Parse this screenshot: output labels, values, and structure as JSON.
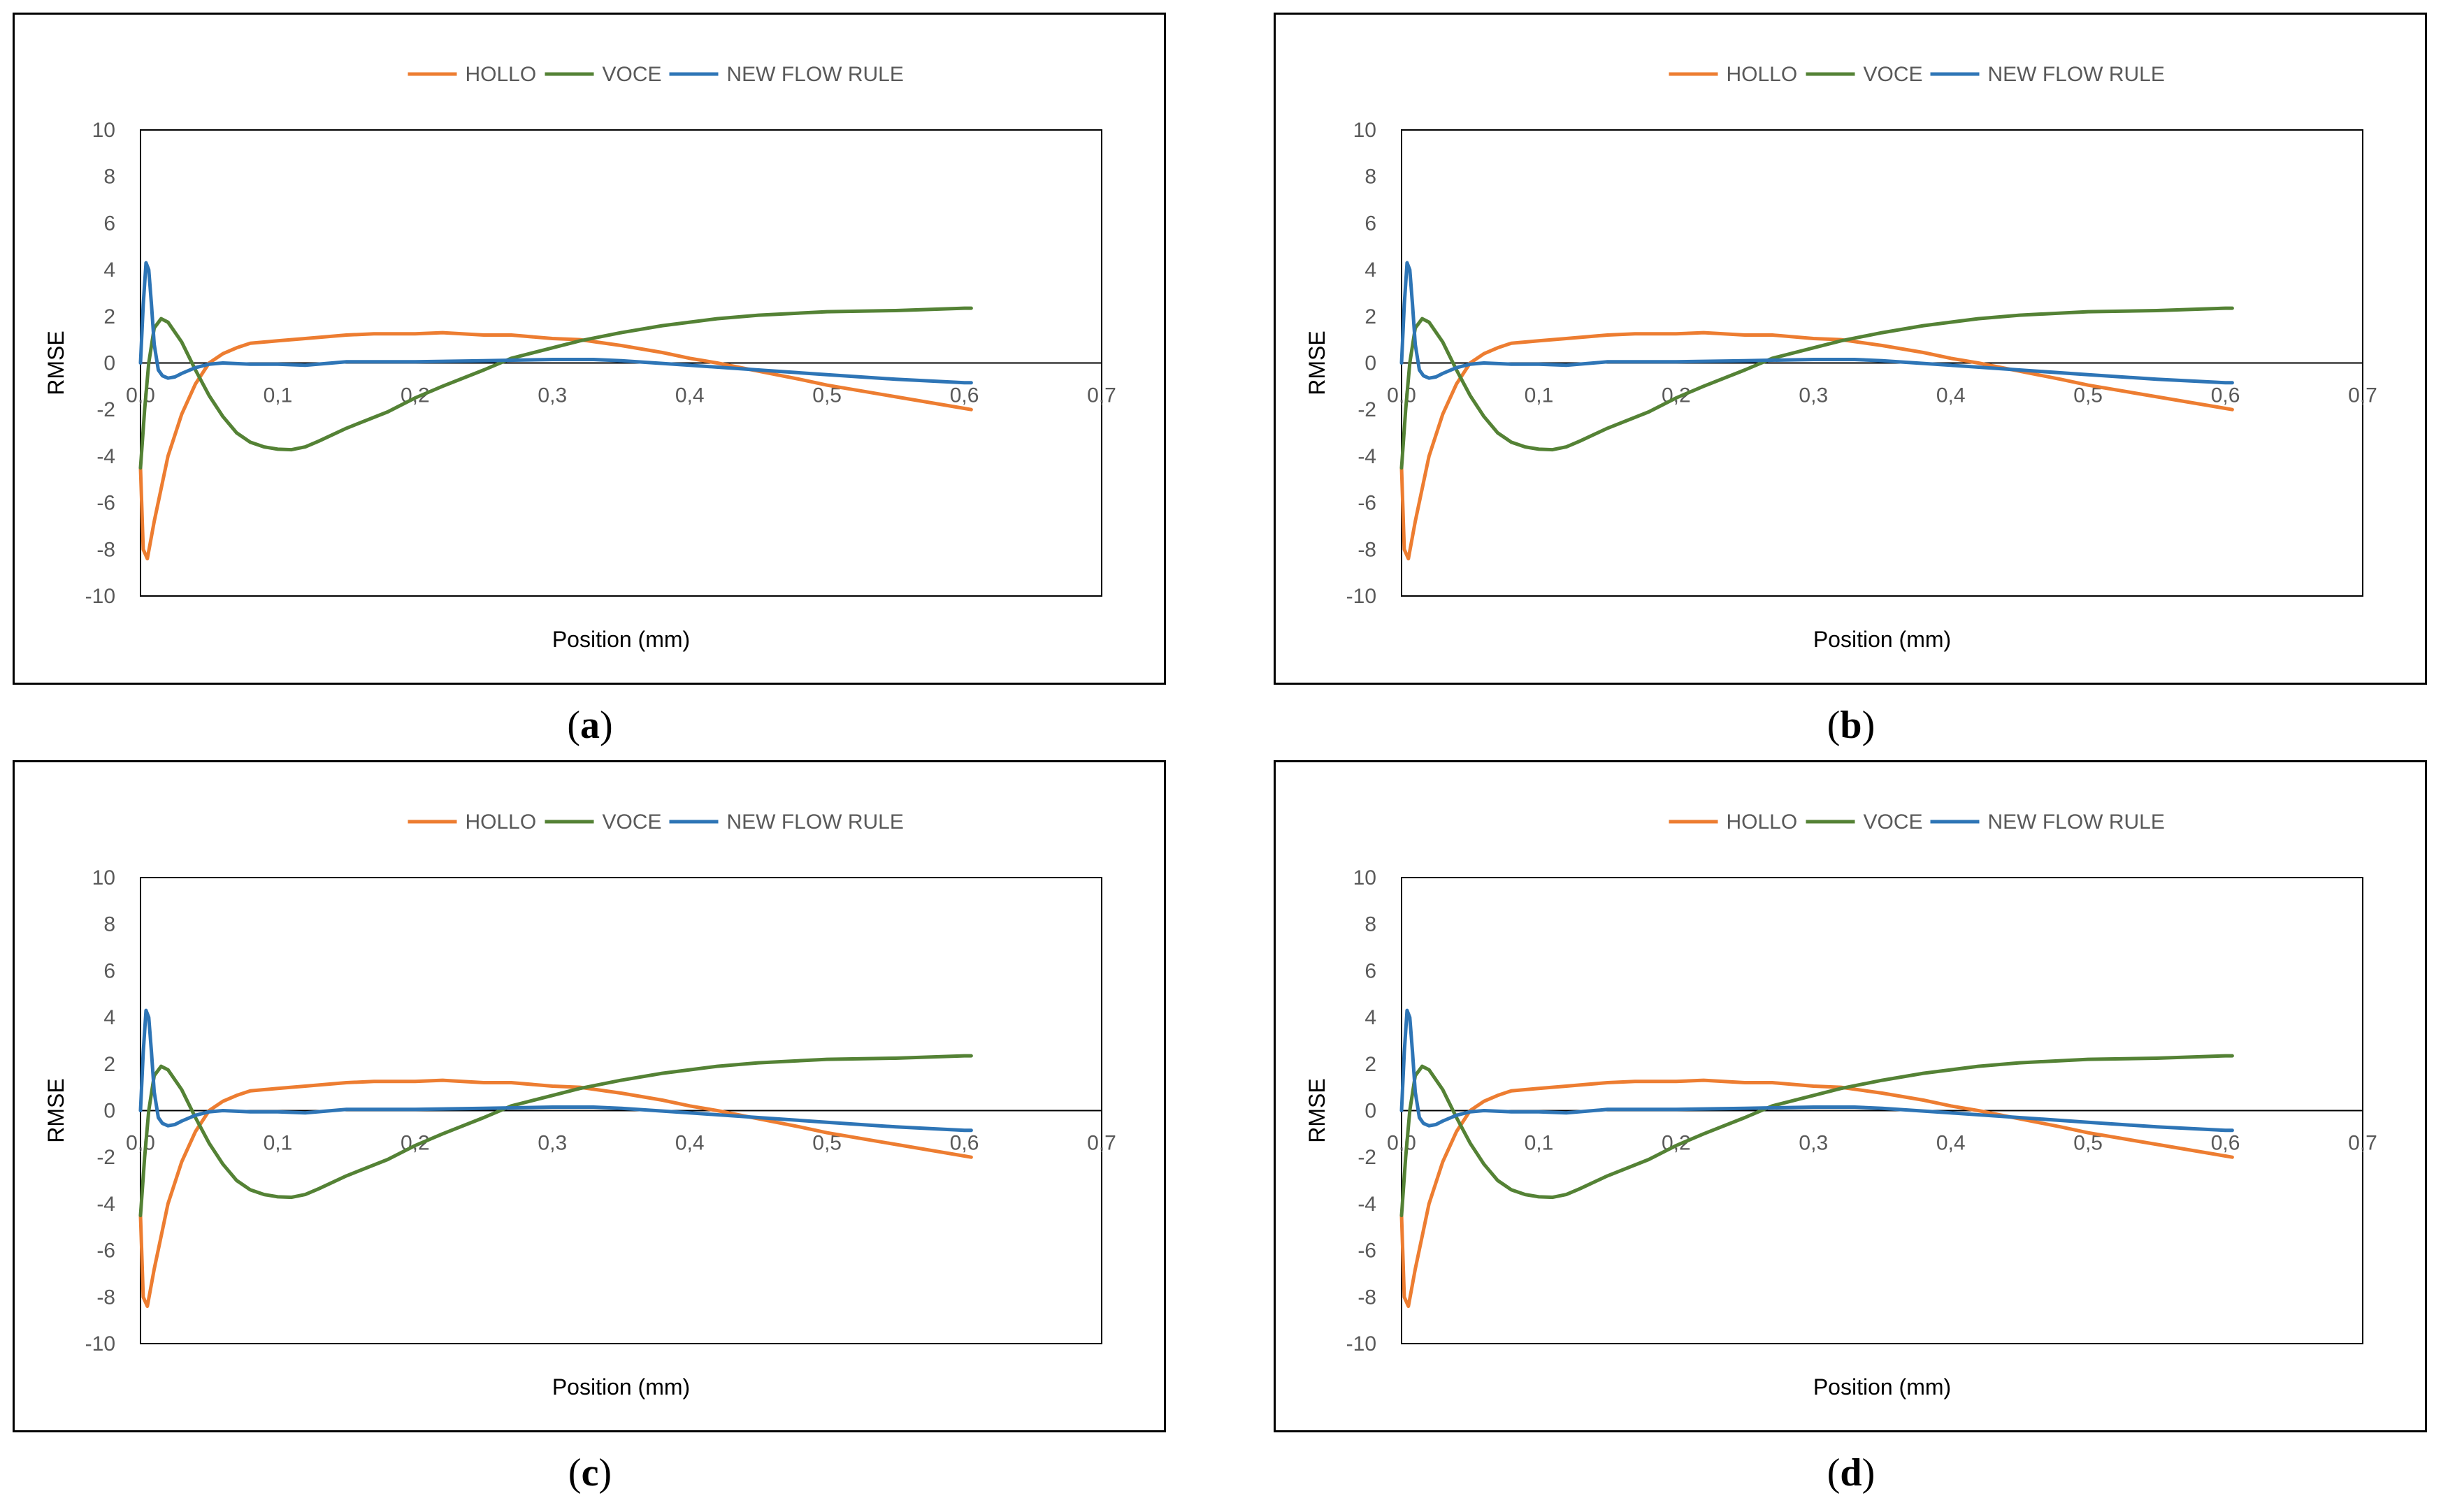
{
  "colors": {
    "hollo": "#ED7D31",
    "voce": "#548235",
    "new_flow_rule": "#2E75B6",
    "axis": "#000000",
    "tick_text": "#595959"
  },
  "chart_data": [
    {
      "type": "line",
      "caption": "a",
      "title": "",
      "xlabel": "Position (mm)",
      "ylabel": "RMSE",
      "xlim": [
        0,
        0.7
      ],
      "ylim": [
        -10,
        10
      ],
      "x_ticks": [
        "0,0",
        "0,1",
        "0,2",
        "0,3",
        "0,4",
        "0,5",
        "0,6",
        "0,7"
      ],
      "y_ticks": [
        "10",
        "8",
        "6",
        "4",
        "2",
        "0",
        "-2",
        "-4",
        "-6",
        "-8",
        "-10"
      ],
      "grid": false,
      "legend": "top-center",
      "series": [
        {
          "name": "HOLLO",
          "color_key": "hollo",
          "x": [
            0,
            0.002,
            0.005,
            0.01,
            0.02,
            0.03,
            0.04,
            0.05,
            0.06,
            0.07,
            0.08,
            0.1,
            0.12,
            0.15,
            0.17,
            0.2,
            0.22,
            0.25,
            0.27,
            0.3,
            0.32,
            0.35,
            0.38,
            0.4,
            0.42,
            0.45,
            0.48,
            0.5,
            0.55,
            0.6,
            0.605
          ],
          "y": [
            -4.5,
            -8.0,
            -8.4,
            -6.8,
            -4.0,
            -2.2,
            -0.9,
            0.0,
            0.4,
            0.65,
            0.85,
            0.95,
            1.05,
            1.2,
            1.25,
            1.25,
            1.3,
            1.2,
            1.2,
            1.05,
            1.0,
            0.75,
            0.45,
            0.2,
            0.0,
            -0.35,
            -0.7,
            -0.95,
            -1.45,
            -1.95,
            -2.0
          ]
        },
        {
          "name": "VOCE",
          "color_key": "voce",
          "x": [
            0,
            0.003,
            0.006,
            0.01,
            0.015,
            0.02,
            0.03,
            0.04,
            0.05,
            0.06,
            0.07,
            0.08,
            0.09,
            0.1,
            0.11,
            0.12,
            0.13,
            0.15,
            0.18,
            0.2,
            0.22,
            0.25,
            0.27,
            0.3,
            0.32,
            0.35,
            0.38,
            0.4,
            0.42,
            0.45,
            0.5,
            0.55,
            0.6,
            0.605
          ],
          "y": [
            -4.5,
            -2.0,
            0.0,
            1.5,
            1.9,
            1.75,
            0.9,
            -0.3,
            -1.4,
            -2.3,
            -3.0,
            -3.4,
            -3.6,
            -3.7,
            -3.72,
            -3.6,
            -3.35,
            -2.8,
            -2.1,
            -1.5,
            -1.0,
            -0.3,
            0.2,
            0.65,
            0.95,
            1.3,
            1.6,
            1.75,
            1.9,
            2.05,
            2.2,
            2.25,
            2.35,
            2.35
          ]
        },
        {
          "name": "NEW FLOW RULE",
          "color_key": "new_flow_rule",
          "x": [
            0,
            0.002,
            0.004,
            0.006,
            0.008,
            0.01,
            0.013,
            0.016,
            0.02,
            0.025,
            0.03,
            0.04,
            0.05,
            0.06,
            0.08,
            0.1,
            0.12,
            0.15,
            0.2,
            0.25,
            0.3,
            0.33,
            0.35,
            0.4,
            0.45,
            0.5,
            0.55,
            0.6,
            0.605
          ],
          "y": [
            0.0,
            2.5,
            4.3,
            4.0,
            2.5,
            0.8,
            -0.3,
            -0.55,
            -0.65,
            -0.6,
            -0.45,
            -0.2,
            -0.05,
            0.0,
            -0.05,
            -0.05,
            -0.1,
            0.05,
            0.05,
            0.1,
            0.15,
            0.15,
            0.1,
            -0.1,
            -0.3,
            -0.5,
            -0.7,
            -0.85,
            -0.85
          ]
        }
      ]
    },
    {
      "type": "line",
      "caption": "b",
      "title": "",
      "xlabel": "Position (mm)",
      "ylabel": "RMSE",
      "xlim": [
        0,
        0.7
      ],
      "ylim": [
        -10,
        10
      ],
      "x_ticks": [
        "0,0",
        "0,1",
        "0,2",
        "0,3",
        "0,4",
        "0,5",
        "0,6",
        "0,7"
      ],
      "y_ticks": [
        "10",
        "8",
        "6",
        "4",
        "2",
        "0",
        "-2",
        "-4",
        "-6",
        "-8",
        "-10"
      ],
      "grid": false,
      "legend": "top-center",
      "series": [
        {
          "name": "HOLLO",
          "color_key": "hollo",
          "x": [
            0,
            0.002,
            0.005,
            0.01,
            0.02,
            0.03,
            0.04,
            0.05,
            0.06,
            0.07,
            0.08,
            0.1,
            0.12,
            0.15,
            0.17,
            0.2,
            0.22,
            0.25,
            0.27,
            0.3,
            0.32,
            0.35,
            0.38,
            0.4,
            0.42,
            0.45,
            0.48,
            0.5,
            0.55,
            0.6,
            0.605
          ],
          "y": [
            -4.5,
            -8.0,
            -8.4,
            -6.8,
            -4.0,
            -2.2,
            -0.9,
            0.0,
            0.4,
            0.65,
            0.85,
            0.95,
            1.05,
            1.2,
            1.25,
            1.25,
            1.3,
            1.2,
            1.2,
            1.05,
            1.0,
            0.75,
            0.45,
            0.2,
            0.0,
            -0.35,
            -0.7,
            -0.95,
            -1.45,
            -1.95,
            -2.0
          ]
        },
        {
          "name": "VOCE",
          "color_key": "voce",
          "x": [
            0,
            0.003,
            0.006,
            0.01,
            0.015,
            0.02,
            0.03,
            0.04,
            0.05,
            0.06,
            0.07,
            0.08,
            0.09,
            0.1,
            0.11,
            0.12,
            0.13,
            0.15,
            0.18,
            0.2,
            0.22,
            0.25,
            0.27,
            0.3,
            0.32,
            0.35,
            0.38,
            0.4,
            0.42,
            0.45,
            0.5,
            0.55,
            0.6,
            0.605
          ],
          "y": [
            -4.5,
            -2.0,
            0.0,
            1.5,
            1.9,
            1.75,
            0.9,
            -0.3,
            -1.4,
            -2.3,
            -3.0,
            -3.4,
            -3.6,
            -3.7,
            -3.72,
            -3.6,
            -3.35,
            -2.8,
            -2.1,
            -1.5,
            -1.0,
            -0.3,
            0.2,
            0.65,
            0.95,
            1.3,
            1.6,
            1.75,
            1.9,
            2.05,
            2.2,
            2.25,
            2.35,
            2.35
          ]
        },
        {
          "name": "NEW FLOW RULE",
          "color_key": "new_flow_rule",
          "x": [
            0,
            0.002,
            0.004,
            0.006,
            0.008,
            0.01,
            0.013,
            0.016,
            0.02,
            0.025,
            0.03,
            0.04,
            0.05,
            0.06,
            0.08,
            0.1,
            0.12,
            0.15,
            0.2,
            0.25,
            0.3,
            0.33,
            0.35,
            0.4,
            0.45,
            0.5,
            0.55,
            0.6,
            0.605
          ],
          "y": [
            0.0,
            2.5,
            4.3,
            4.0,
            2.5,
            0.8,
            -0.3,
            -0.55,
            -0.65,
            -0.6,
            -0.45,
            -0.2,
            -0.05,
            0.0,
            -0.05,
            -0.05,
            -0.1,
            0.05,
            0.05,
            0.1,
            0.15,
            0.15,
            0.1,
            -0.1,
            -0.3,
            -0.5,
            -0.7,
            -0.85,
            -0.85
          ]
        }
      ]
    },
    {
      "type": "line",
      "caption": "c",
      "title": "",
      "xlabel": "Position (mm)",
      "ylabel": "RMSE",
      "xlim": [
        0,
        0.7
      ],
      "ylim": [
        -10,
        10
      ],
      "x_ticks": [
        "0,0",
        "0,1",
        "0,2",
        "0,3",
        "0,4",
        "0,5",
        "0,6",
        "0,7"
      ],
      "y_ticks": [
        "10",
        "8",
        "6",
        "4",
        "2",
        "0",
        "-2",
        "-4",
        "-6",
        "-8",
        "-10"
      ],
      "grid": false,
      "legend": "top-center",
      "series": [
        {
          "name": "HOLLO",
          "color_key": "hollo",
          "x": [
            0,
            0.002,
            0.005,
            0.01,
            0.02,
            0.03,
            0.04,
            0.05,
            0.06,
            0.07,
            0.08,
            0.1,
            0.12,
            0.15,
            0.17,
            0.2,
            0.22,
            0.25,
            0.27,
            0.3,
            0.32,
            0.35,
            0.38,
            0.4,
            0.42,
            0.45,
            0.48,
            0.5,
            0.55,
            0.6,
            0.605
          ],
          "y": [
            -4.5,
            -8.0,
            -8.4,
            -6.8,
            -4.0,
            -2.2,
            -0.9,
            0.0,
            0.4,
            0.65,
            0.85,
            0.95,
            1.05,
            1.2,
            1.25,
            1.25,
            1.3,
            1.2,
            1.2,
            1.05,
            1.0,
            0.75,
            0.45,
            0.2,
            0.0,
            -0.35,
            -0.7,
            -0.95,
            -1.45,
            -1.95,
            -2.0
          ]
        },
        {
          "name": "VOCE",
          "color_key": "voce",
          "x": [
            0,
            0.003,
            0.006,
            0.01,
            0.015,
            0.02,
            0.03,
            0.04,
            0.05,
            0.06,
            0.07,
            0.08,
            0.09,
            0.1,
            0.11,
            0.12,
            0.13,
            0.15,
            0.18,
            0.2,
            0.22,
            0.25,
            0.27,
            0.3,
            0.32,
            0.35,
            0.38,
            0.4,
            0.42,
            0.45,
            0.5,
            0.55,
            0.6,
            0.605
          ],
          "y": [
            -4.5,
            -2.0,
            0.0,
            1.5,
            1.9,
            1.75,
            0.9,
            -0.3,
            -1.4,
            -2.3,
            -3.0,
            -3.4,
            -3.6,
            -3.7,
            -3.72,
            -3.6,
            -3.35,
            -2.8,
            -2.1,
            -1.5,
            -1.0,
            -0.3,
            0.2,
            0.65,
            0.95,
            1.3,
            1.6,
            1.75,
            1.9,
            2.05,
            2.2,
            2.25,
            2.35,
            2.35
          ]
        },
        {
          "name": "NEW FLOW RULE",
          "color_key": "new_flow_rule",
          "x": [
            0,
            0.002,
            0.004,
            0.006,
            0.008,
            0.01,
            0.013,
            0.016,
            0.02,
            0.025,
            0.03,
            0.04,
            0.05,
            0.06,
            0.08,
            0.1,
            0.12,
            0.15,
            0.2,
            0.25,
            0.3,
            0.33,
            0.35,
            0.4,
            0.45,
            0.5,
            0.55,
            0.6,
            0.605
          ],
          "y": [
            0.0,
            2.5,
            4.3,
            4.0,
            2.5,
            0.8,
            -0.3,
            -0.55,
            -0.65,
            -0.6,
            -0.45,
            -0.2,
            -0.05,
            0.0,
            -0.05,
            -0.05,
            -0.1,
            0.05,
            0.05,
            0.1,
            0.15,
            0.15,
            0.1,
            -0.1,
            -0.3,
            -0.5,
            -0.7,
            -0.85,
            -0.85
          ]
        }
      ]
    },
    {
      "type": "line",
      "caption": "d",
      "title": "",
      "xlabel": "Position (mm)",
      "ylabel": "RMSE",
      "xlim": [
        0,
        0.7
      ],
      "ylim": [
        -10,
        10
      ],
      "x_ticks": [
        "0,0",
        "0,1",
        "0,2",
        "0,3",
        "0,4",
        "0,5",
        "0,6",
        "0,7"
      ],
      "y_ticks": [
        "10",
        "8",
        "6",
        "4",
        "2",
        "0",
        "-2",
        "-4",
        "-6",
        "-8",
        "-10"
      ],
      "grid": false,
      "legend": "top-center",
      "series": [
        {
          "name": "HOLLO",
          "color_key": "hollo",
          "x": [
            0,
            0.002,
            0.005,
            0.01,
            0.02,
            0.03,
            0.04,
            0.05,
            0.06,
            0.07,
            0.08,
            0.1,
            0.12,
            0.15,
            0.17,
            0.2,
            0.22,
            0.25,
            0.27,
            0.3,
            0.32,
            0.35,
            0.38,
            0.4,
            0.42,
            0.45,
            0.48,
            0.5,
            0.55,
            0.6,
            0.605
          ],
          "y": [
            -4.5,
            -8.0,
            -8.4,
            -6.8,
            -4.0,
            -2.2,
            -0.9,
            0.0,
            0.4,
            0.65,
            0.85,
            0.95,
            1.05,
            1.2,
            1.25,
            1.25,
            1.3,
            1.2,
            1.2,
            1.05,
            1.0,
            0.75,
            0.45,
            0.2,
            0.0,
            -0.35,
            -0.7,
            -0.95,
            -1.45,
            -1.95,
            -2.0
          ]
        },
        {
          "name": "VOCE",
          "color_key": "voce",
          "x": [
            0,
            0.003,
            0.006,
            0.01,
            0.015,
            0.02,
            0.03,
            0.04,
            0.05,
            0.06,
            0.07,
            0.08,
            0.09,
            0.1,
            0.11,
            0.12,
            0.13,
            0.15,
            0.18,
            0.2,
            0.22,
            0.25,
            0.27,
            0.3,
            0.32,
            0.35,
            0.38,
            0.4,
            0.42,
            0.45,
            0.5,
            0.55,
            0.6,
            0.605
          ],
          "y": [
            -4.5,
            -2.0,
            0.0,
            1.5,
            1.9,
            1.75,
            0.9,
            -0.3,
            -1.4,
            -2.3,
            -3.0,
            -3.4,
            -3.6,
            -3.7,
            -3.72,
            -3.6,
            -3.35,
            -2.8,
            -2.1,
            -1.5,
            -1.0,
            -0.3,
            0.2,
            0.65,
            0.95,
            1.3,
            1.6,
            1.75,
            1.9,
            2.05,
            2.2,
            2.25,
            2.35,
            2.35
          ]
        },
        {
          "name": "NEW FLOW RULE",
          "color_key": "new_flow_rule",
          "x": [
            0,
            0.002,
            0.004,
            0.006,
            0.008,
            0.01,
            0.013,
            0.016,
            0.02,
            0.025,
            0.03,
            0.04,
            0.05,
            0.06,
            0.08,
            0.1,
            0.12,
            0.15,
            0.2,
            0.25,
            0.3,
            0.33,
            0.35,
            0.4,
            0.45,
            0.5,
            0.55,
            0.6,
            0.605
          ],
          "y": [
            0.0,
            2.5,
            4.3,
            4.0,
            2.5,
            0.8,
            -0.3,
            -0.55,
            -0.65,
            -0.6,
            -0.45,
            -0.2,
            -0.05,
            0.0,
            -0.05,
            -0.05,
            -0.1,
            0.05,
            0.05,
            0.1,
            0.15,
            0.15,
            0.1,
            -0.1,
            -0.3,
            -0.5,
            -0.7,
            -0.85,
            -0.85
          ]
        }
      ]
    }
  ]
}
